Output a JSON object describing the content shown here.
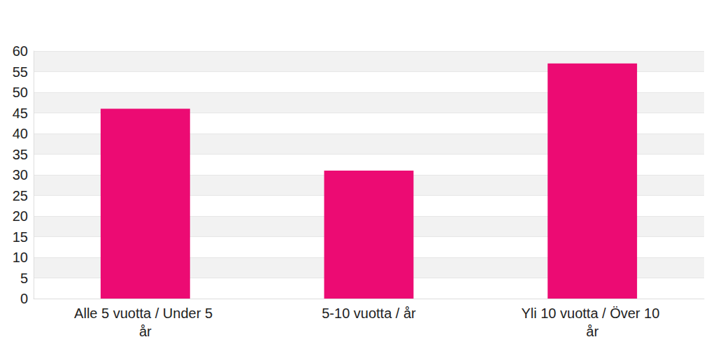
{
  "chart_data": {
    "type": "bar",
    "categories": [
      "Alle 5 vuotta / Under 5 år",
      "5-10 vuotta / år",
      "Yli 10 vuotta / Över 10 år"
    ],
    "values": [
      46,
      31,
      57
    ],
    "color": "#ec0b73",
    "ylim": [
      0,
      60
    ],
    "yticks": [
      0,
      5,
      10,
      15,
      20,
      25,
      30,
      35,
      40,
      45,
      50,
      55,
      60
    ],
    "grid": true
  }
}
